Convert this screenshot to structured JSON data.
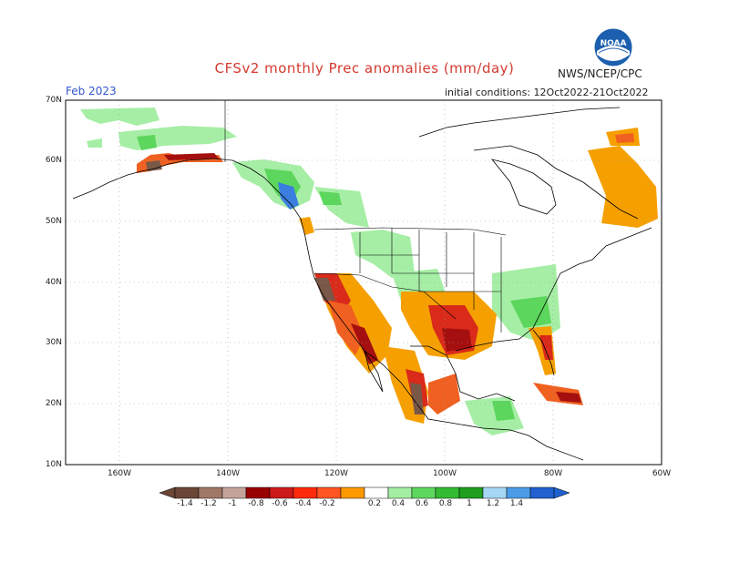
{
  "header": {
    "title": "CFSv2 monthly Prec anomalies (mm/day)",
    "org": "NWS/NCEP/CPC",
    "valid_month": "Feb 2023",
    "initial_conditions": "initial conditions: 12Oct2022-21Oct2022",
    "logo_text": "NOAA"
  },
  "axes": {
    "lat_labels": [
      "70N",
      "60N",
      "50N",
      "40N",
      "30N",
      "20N",
      "10N"
    ],
    "lon_labels": [
      "160W",
      "140W",
      "120W",
      "100W",
      "80W",
      "60W"
    ]
  },
  "colorbar": {
    "labels": [
      "-1.4",
      "-1.2",
      "-1",
      "-0.8",
      "-0.6",
      "-0.4",
      "-0.2",
      "0.2",
      "0.4",
      "0.6",
      "0.8",
      "1",
      "1.2",
      "1.4"
    ],
    "colors": [
      "#6b4636",
      "#a07868",
      "#c4a49a",
      "#990000",
      "#cc1a1a",
      "#ff5522",
      "#ff9900",
      "#ffffff",
      "#a2eea2",
      "#5ed75e",
      "#33bb33",
      "#1f9e1f",
      "#a6d8f5",
      "#4a9ce8",
      "#2060d0"
    ]
  },
  "legend_colors": {
    "brown": "#7a5848",
    "dark_red": "#a50f0f",
    "red": "#d92a1a",
    "orange_red": "#f06020",
    "orange": "#f5a000",
    "light_green": "#a6eea6",
    "green": "#5cd65c",
    "blue": "#3b7ee0"
  }
}
